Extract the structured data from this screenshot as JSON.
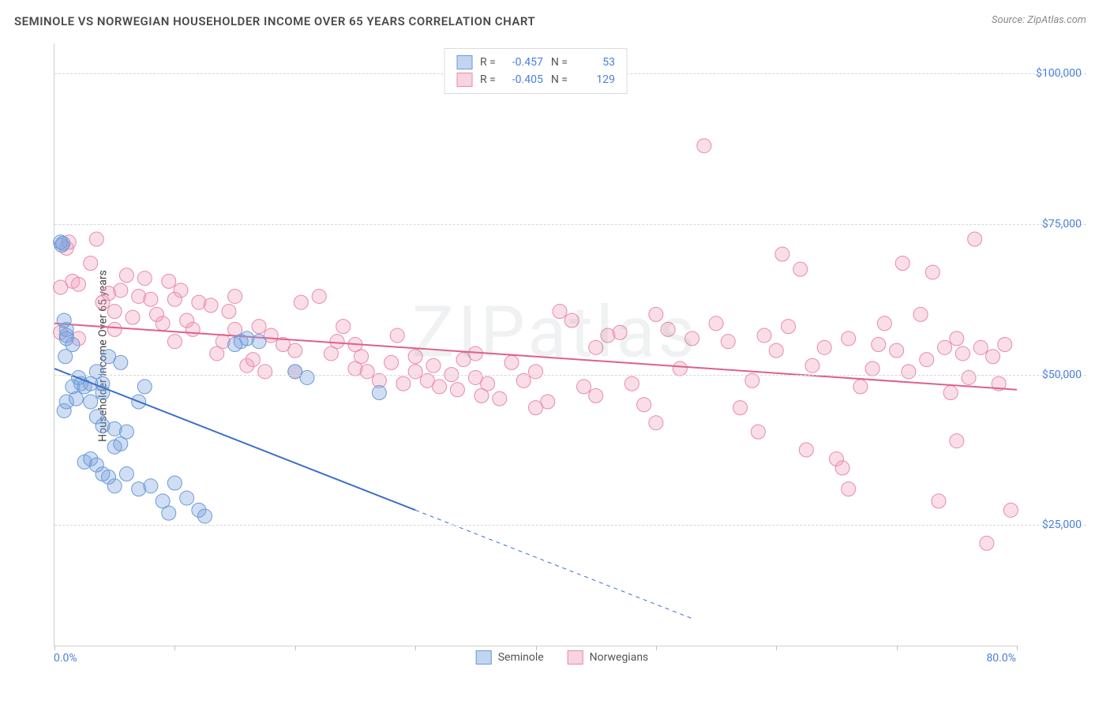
{
  "title": "SEMINOLE VS NORWEGIAN HOUSEHOLDER INCOME OVER 65 YEARS CORRELATION CHART",
  "source": "Source: ZipAtlas.com",
  "watermark": "ZIPatlas",
  "y_axis_label": "Householder Income Over 65 years",
  "chart": {
    "type": "scatter",
    "xlim": [
      0,
      80
    ],
    "ylim": [
      5000,
      105000
    ],
    "x_tick_positions": [
      0,
      10,
      20,
      30,
      40,
      50,
      60,
      70,
      80
    ],
    "x_tick_labels_shown": {
      "0": "0.0%",
      "80": "80.0%"
    },
    "y_gridlines": [
      25000,
      50000,
      75000,
      100000
    ],
    "y_tick_labels": {
      "25000": "$25,000",
      "50000": "$50,000",
      "75000": "$75,000",
      "100000": "$100,000"
    },
    "grid_color": "#d8d8d8",
    "axis_color": "#d0d0d0",
    "background_color": "#ffffff",
    "tick_label_color": "#4a7fd8",
    "tick_label_fontsize": 14,
    "axis_label_fontsize": 14,
    "axis_label_color": "#444444",
    "series": [
      {
        "name": "Seminole",
        "marker_fill": "rgba(120,160,220,0.35)",
        "marker_stroke": "#6a9ad8",
        "marker_radius": 9,
        "line_color": "#3a6fc8",
        "line_width": 2,
        "line_dash_extrapolate": "5,5",
        "R": -0.457,
        "N": 53,
        "trend": {
          "x1": 0,
          "y1": 51000,
          "x2_solid": 30,
          "y2_solid": 27500,
          "x2_dash": 53,
          "y2_dash": 9500
        },
        "points": [
          [
            0.5,
            72000
          ],
          [
            0.6,
            71500
          ],
          [
            0.7,
            71800
          ],
          [
            1,
            57500
          ],
          [
            1,
            56500
          ],
          [
            1,
            56000
          ],
          [
            0.8,
            59000
          ],
          [
            1.5,
            55000
          ],
          [
            0.9,
            53000
          ],
          [
            0.8,
            44000
          ],
          [
            1,
            45500
          ],
          [
            1.8,
            46000
          ],
          [
            1.5,
            48000
          ],
          [
            2,
            49500
          ],
          [
            2.2,
            48500
          ],
          [
            2.5,
            48000
          ],
          [
            3,
            48500
          ],
          [
            3,
            45500
          ],
          [
            3.5,
            50500
          ],
          [
            4,
            48500
          ],
          [
            4,
            47000
          ],
          [
            4.5,
            53000
          ],
          [
            5.5,
            52000
          ],
          [
            7,
            45500
          ],
          [
            7.5,
            48000
          ],
          [
            3.5,
            43000
          ],
          [
            4,
            41500
          ],
          [
            5,
            41000
          ],
          [
            5,
            38000
          ],
          [
            5.5,
            38500
          ],
          [
            6,
            40500
          ],
          [
            2.5,
            35500
          ],
          [
            3,
            36000
          ],
          [
            3.5,
            35000
          ],
          [
            4,
            33500
          ],
          [
            4.5,
            33000
          ],
          [
            5,
            31500
          ],
          [
            6,
            33500
          ],
          [
            7,
            31000
          ],
          [
            8,
            31500
          ],
          [
            9,
            29000
          ],
          [
            9.5,
            27000
          ],
          [
            10,
            32000
          ],
          [
            11,
            29500
          ],
          [
            12,
            27500
          ],
          [
            12.5,
            26500
          ],
          [
            15,
            55000
          ],
          [
            15.5,
            55500
          ],
          [
            16,
            56000
          ],
          [
            17,
            55500
          ],
          [
            20,
            50500
          ],
          [
            21,
            49500
          ],
          [
            27,
            47000
          ]
        ]
      },
      {
        "name": "Norwegians",
        "marker_fill": "rgba(240,160,185,0.35)",
        "marker_stroke": "#e88aa8",
        "marker_radius": 9,
        "line_color": "#e06088",
        "line_width": 2,
        "R": -0.405,
        "N": 129,
        "trend": {
          "x1": 0,
          "y1": 58500,
          "x2_solid": 80,
          "y2_solid": 47500
        },
        "points": [
          [
            0.5,
            64500
          ],
          [
            1,
            71000
          ],
          [
            1.2,
            72000
          ],
          [
            1.5,
            65500
          ],
          [
            2,
            65000
          ],
          [
            2,
            56000
          ],
          [
            0.5,
            57000
          ],
          [
            3,
            68500
          ],
          [
            3.5,
            72500
          ],
          [
            4,
            62000
          ],
          [
            4.5,
            63500
          ],
          [
            5,
            60500
          ],
          [
            5.5,
            64000
          ],
          [
            6,
            66500
          ],
          [
            6.5,
            59500
          ],
          [
            7,
            63000
          ],
          [
            7.5,
            66000
          ],
          [
            8,
            62500
          ],
          [
            8.5,
            60000
          ],
          [
            9,
            58500
          ],
          [
            9.5,
            65500
          ],
          [
            10,
            62500
          ],
          [
            10.5,
            64000
          ],
          [
            11,
            59000
          ],
          [
            11.5,
            57500
          ],
          [
            12,
            62000
          ],
          [
            13,
            61500
          ],
          [
            13.5,
            53500
          ],
          [
            14,
            55500
          ],
          [
            14.5,
            60500
          ],
          [
            15,
            63000
          ],
          [
            16,
            51500
          ],
          [
            16.5,
            52500
          ],
          [
            17,
            58000
          ],
          [
            17.5,
            50500
          ],
          [
            18,
            56500
          ],
          [
            19,
            55000
          ],
          [
            20,
            50500
          ],
          [
            20.5,
            62000
          ],
          [
            22,
            63000
          ],
          [
            23,
            53500
          ],
          [
            23.5,
            55500
          ],
          [
            24,
            58000
          ],
          [
            25,
            51000
          ],
          [
            25.5,
            53000
          ],
          [
            26,
            50500
          ],
          [
            27,
            49000
          ],
          [
            28,
            52000
          ],
          [
            28.5,
            56500
          ],
          [
            29,
            48500
          ],
          [
            30,
            50500
          ],
          [
            31,
            49000
          ],
          [
            31.5,
            51500
          ],
          [
            32,
            48000
          ],
          [
            33,
            50000
          ],
          [
            33.5,
            47500
          ],
          [
            34,
            52500
          ],
          [
            35,
            49500
          ],
          [
            35.5,
            46500
          ],
          [
            36,
            48500
          ],
          [
            37,
            46000
          ],
          [
            38,
            52000
          ],
          [
            39,
            49000
          ],
          [
            40,
            50500
          ],
          [
            41,
            45500
          ],
          [
            42,
            60500
          ],
          [
            43,
            59000
          ],
          [
            44,
            48000
          ],
          [
            45,
            54500
          ],
          [
            46,
            56500
          ],
          [
            47,
            57000
          ],
          [
            48,
            48500
          ],
          [
            49,
            45000
          ],
          [
            50,
            42000
          ],
          [
            51,
            57500
          ],
          [
            52,
            51000
          ],
          [
            53,
            56000
          ],
          [
            54,
            88000
          ],
          [
            55,
            58500
          ],
          [
            56,
            55500
          ],
          [
            57,
            44500
          ],
          [
            58,
            49000
          ],
          [
            58.5,
            40500
          ],
          [
            59,
            56500
          ],
          [
            60,
            54000
          ],
          [
            60.5,
            70000
          ],
          [
            61,
            58000
          ],
          [
            62,
            67500
          ],
          [
            62.5,
            37500
          ],
          [
            63,
            51500
          ],
          [
            64,
            54500
          ],
          [
            65,
            36000
          ],
          [
            65.5,
            34500
          ],
          [
            66,
            56000
          ],
          [
            66,
            31000
          ],
          [
            67,
            48000
          ],
          [
            68,
            51000
          ],
          [
            68.5,
            55000
          ],
          [
            69,
            58500
          ],
          [
            70,
            54000
          ],
          [
            70.5,
            68500
          ],
          [
            71,
            50500
          ],
          [
            72,
            60000
          ],
          [
            72.5,
            52500
          ],
          [
            73,
            67000
          ],
          [
            73.5,
            29000
          ],
          [
            74,
            54500
          ],
          [
            74.5,
            47000
          ],
          [
            75,
            56000
          ],
          [
            75.5,
            53500
          ],
          [
            76,
            49500
          ],
          [
            76.5,
            72500
          ],
          [
            77,
            54500
          ],
          [
            77.5,
            22000
          ],
          [
            78,
            53000
          ],
          [
            78.5,
            48500
          ],
          [
            79,
            55000
          ],
          [
            79.5,
            27500
          ],
          [
            75,
            39000
          ],
          [
            50,
            60000
          ],
          [
            45,
            46500
          ],
          [
            40,
            44500
          ],
          [
            35,
            53500
          ],
          [
            30,
            53000
          ],
          [
            25,
            55000
          ],
          [
            20,
            54000
          ],
          [
            15,
            57500
          ],
          [
            10,
            55500
          ],
          [
            5,
            57500
          ]
        ]
      }
    ],
    "legend_top": {
      "swatch_size": 20,
      "border_color": "#dcdcdc",
      "rows": [
        {
          "swatch_fill": "rgba(120,160,220,0.45)",
          "swatch_stroke": "#6a9ad8",
          "R_label": "R =",
          "R": "-0.457",
          "N_label": "N =",
          "N": "53"
        },
        {
          "swatch_fill": "rgba(240,160,185,0.45)",
          "swatch_stroke": "#e88aa8",
          "R_label": "R =",
          "R": "-0.405",
          "N_label": "N =",
          "N": "129"
        }
      ]
    },
    "legend_bottom": [
      {
        "swatch_fill": "rgba(120,160,220,0.45)",
        "swatch_stroke": "#6a9ad8",
        "label": "Seminole"
      },
      {
        "swatch_fill": "rgba(240,160,185,0.45)",
        "swatch_stroke": "#e88aa8",
        "label": "Norwegians"
      }
    ]
  }
}
